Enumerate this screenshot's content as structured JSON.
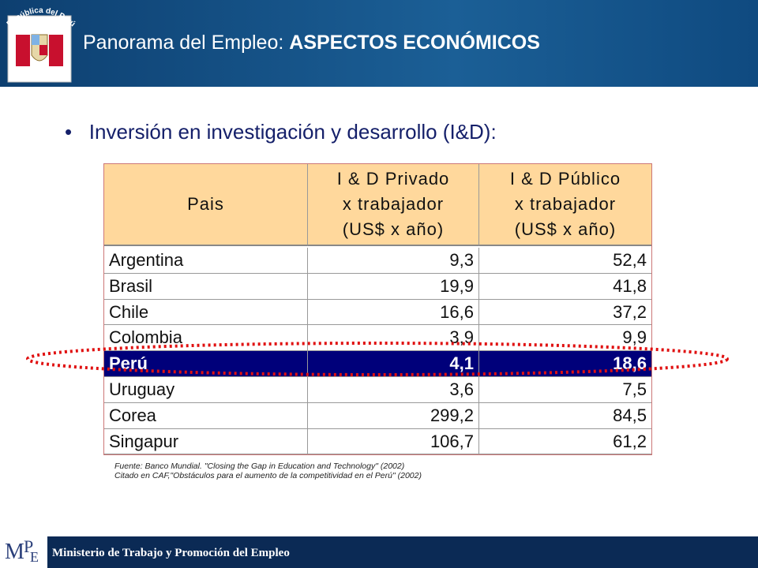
{
  "header": {
    "emblem_text": "República del Perú",
    "title_prefix": "Panorama del Empleo: ",
    "title_bold": "ASPECTOS ECONÓMICOS"
  },
  "bullet": "Inversión en investigación y desarrollo (I&D):",
  "table": {
    "columns": [
      [
        "Pais"
      ],
      [
        "I & D Privado",
        "x trabajador",
        "(US$ x año)"
      ],
      [
        "I & D Público",
        "x trabajador",
        "(US$ x año)"
      ]
    ],
    "rows": [
      [
        "Argentina",
        "9,3",
        "52,4"
      ],
      [
        "Brasil",
        "19,9",
        "41,8"
      ],
      [
        "Chile",
        "16,6",
        "37,2"
      ],
      [
        "Colombia",
        "3,9",
        "9,9"
      ],
      [
        "Perú",
        "4,1",
        "18,6"
      ],
      [
        "Uruguay",
        "3,6",
        "7,5"
      ],
      [
        "Corea",
        "299,2",
        "84,5"
      ],
      [
        "Singapur",
        "106,7",
        "61,2"
      ]
    ],
    "highlight_row": 4
  },
  "source": [
    "Fuente: Banco Mundial. \"Closing the Gap in Education and Technology\" (2002)",
    "Citado en CAF,\"Obstáculos para el aumento de la competitividad en el Perú\" (2002)"
  ],
  "footer": "Ministerio de Trabajo y Promoción del Empleo"
}
